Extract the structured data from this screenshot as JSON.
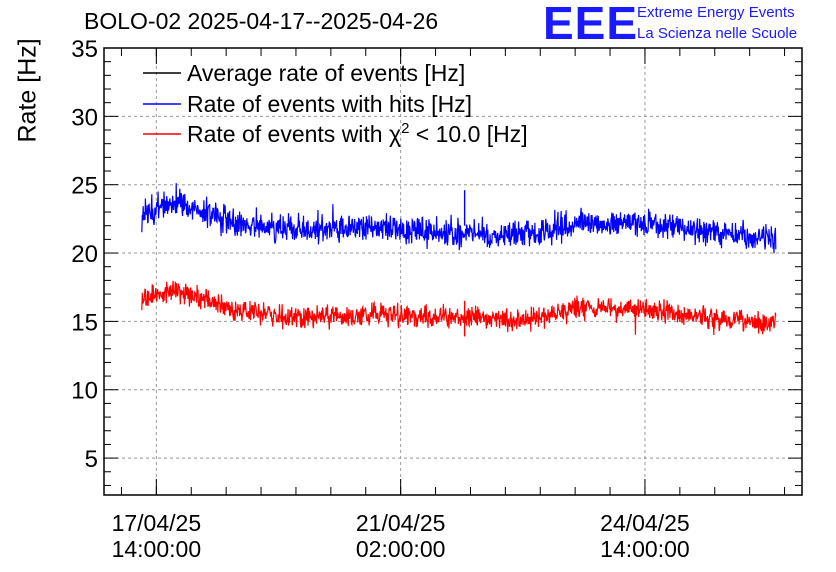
{
  "header": {
    "title": "BOLO-02 2025-04-17--2025-04-26",
    "logo_text": "EEE",
    "logo_line1": "Extreme Energy Events",
    "logo_line2": "La Scienza nelle Scuole"
  },
  "chart_data": {
    "type": "line",
    "ylabel": "Rate [Hz]",
    "ylim": [
      2.3,
      35
    ],
    "yticks": [
      5,
      10,
      15,
      20,
      25,
      30,
      35
    ],
    "grid": true,
    "legend_position": "top-left",
    "x_range": [
      "2025-04-16 20:00",
      "2025-04-26 20:00"
    ],
    "x_ticks": [
      {
        "date": "17/04/25",
        "time": "14:00:00",
        "at": "2025-04-17 14:00"
      },
      {
        "date": "21/04/25",
        "time": "02:00:00",
        "at": "2025-04-21 02:00"
      },
      {
        "date": "24/04/25",
        "time": "14:00:00",
        "at": "2025-04-24 14:00"
      }
    ],
    "data_range": [
      "2025-04-17 09:00",
      "2025-04-26 11:00"
    ],
    "series": [
      {
        "name": "Average rate of events [Hz]",
        "color": "#000000",
        "keypoints": []
      },
      {
        "name": "Rate of events with hits [Hz]",
        "color": "#0000ff",
        "noise": 0.75,
        "keypoints": [
          [
            "2025-04-17 09:00",
            22.8
          ],
          [
            "2025-04-17 20:00",
            23.8
          ],
          [
            "2025-04-18 06:00",
            23.0
          ],
          [
            "2025-04-18 18:00",
            22.1
          ],
          [
            "2025-04-19 12:00",
            21.7
          ],
          [
            "2025-04-20 06:00",
            21.8
          ],
          [
            "2025-04-20 20:00",
            21.9
          ],
          [
            "2025-04-21 12:00",
            21.6
          ],
          [
            "2025-04-22 06:00",
            21.4
          ],
          [
            "2025-04-22 20:00",
            21.3
          ],
          [
            "2025-04-23 02:00",
            21.6
          ],
          [
            "2025-04-23 14:00",
            22.2
          ],
          [
            "2025-04-24 10:00",
            22.3
          ],
          [
            "2025-04-24 22:00",
            22.0
          ],
          [
            "2025-04-25 12:00",
            21.5
          ],
          [
            "2025-04-26 11:00",
            21.0
          ]
        ]
      },
      {
        "name": "Rate of events with χ² < 10.0 [Hz]",
        "color": "#ff0000",
        "noise": 0.6,
        "keypoints": [
          [
            "2025-04-17 09:00",
            16.6
          ],
          [
            "2025-04-17 20:00",
            17.3
          ],
          [
            "2025-04-18 06:00",
            16.6
          ],
          [
            "2025-04-18 18:00",
            15.8
          ],
          [
            "2025-04-19 12:00",
            15.3
          ],
          [
            "2025-04-20 06:00",
            15.4
          ],
          [
            "2025-04-20 20:00",
            15.6
          ],
          [
            "2025-04-21 12:00",
            15.3
          ],
          [
            "2025-04-22 06:00",
            15.2
          ],
          [
            "2025-04-22 20:00",
            15.0
          ],
          [
            "2025-04-23 02:00",
            15.3
          ],
          [
            "2025-04-23 14:00",
            15.9
          ],
          [
            "2025-04-24 10:00",
            16.0
          ],
          [
            "2025-04-24 22:00",
            15.7
          ],
          [
            "2025-04-25 12:00",
            15.2
          ],
          [
            "2025-04-26 11:00",
            14.9
          ]
        ]
      }
    ],
    "spikes": [
      {
        "series": 1,
        "at": "2025-04-22 00:00",
        "value": 24.6
      },
      {
        "series": 2,
        "at": "2025-04-22 00:00",
        "value": 16.5
      }
    ]
  }
}
